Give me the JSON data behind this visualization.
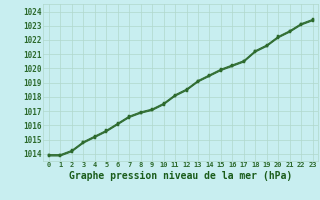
{
  "title": "Graphe pression niveau de la mer (hPa)",
  "x_values": [
    0,
    1,
    2,
    3,
    4,
    5,
    6,
    7,
    8,
    9,
    10,
    11,
    12,
    13,
    14,
    15,
    16,
    17,
    18,
    19,
    20,
    21,
    22,
    23
  ],
  "y_values": [
    1013.9,
    1013.9,
    1014.2,
    1014.8,
    1015.2,
    1015.6,
    1016.1,
    1016.6,
    1016.9,
    1017.1,
    1017.5,
    1018.1,
    1018.5,
    1019.1,
    1019.5,
    1019.9,
    1020.2,
    1020.5,
    1021.2,
    1021.6,
    1022.2,
    1022.6,
    1023.1,
    1023.4
  ],
  "y_values2": [
    1013.85,
    1013.85,
    1014.15,
    1014.75,
    1015.15,
    1015.55,
    1016.05,
    1016.55,
    1016.85,
    1017.05,
    1017.45,
    1018.05,
    1018.45,
    1019.05,
    1019.45,
    1019.85,
    1020.15,
    1020.45,
    1021.15,
    1021.55,
    1022.15,
    1022.55,
    1023.05,
    1023.35
  ],
  "y_values3": [
    1013.95,
    1013.95,
    1014.25,
    1014.85,
    1015.25,
    1015.65,
    1016.15,
    1016.65,
    1016.95,
    1017.15,
    1017.55,
    1018.15,
    1018.55,
    1019.15,
    1019.55,
    1019.95,
    1020.25,
    1020.55,
    1021.25,
    1021.65,
    1022.25,
    1022.65,
    1023.15,
    1023.45
  ],
  "ylim": [
    1013.5,
    1024.5
  ],
  "yticks": [
    1014,
    1015,
    1016,
    1017,
    1018,
    1019,
    1020,
    1021,
    1022,
    1023,
    1024
  ],
  "xticks": [
    0,
    1,
    2,
    3,
    4,
    5,
    6,
    7,
    8,
    9,
    10,
    11,
    12,
    13,
    14,
    15,
    16,
    17,
    18,
    19,
    20,
    21,
    22,
    23
  ],
  "line_color": "#2d6a2d",
  "marker_color": "#2d6a2d",
  "bg_color": "#c8eef0",
  "grid_color": "#b0d8cc",
  "title_color": "#1a5c1a",
  "title_fontsize": 7.0,
  "tick_fontsize": 5.5,
  "xtick_fontsize": 5.0
}
